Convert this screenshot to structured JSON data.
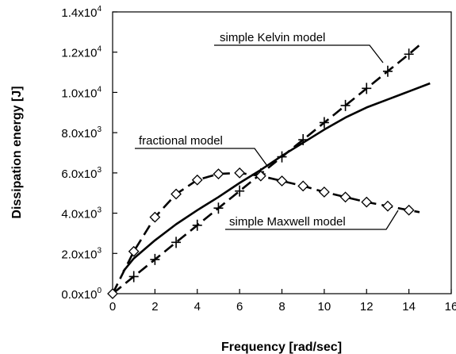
{
  "chart_data": {
    "type": "line",
    "title": "",
    "xlabel": "Frequency [rad/sec]",
    "ylabel": "Dissipation energy [J]",
    "xlim": [
      0,
      16
    ],
    "ylim": [
      0,
      14000
    ],
    "grid": false,
    "x_ticks": [
      "0",
      "2",
      "4",
      "6",
      "8",
      "10",
      "12",
      "14",
      "16"
    ],
    "y_ticks": [
      {
        "mant": "0.0x10",
        "exp": "0"
      },
      {
        "mant": "2.0x10",
        "exp": "3"
      },
      {
        "mant": "4.0x10",
        "exp": "3"
      },
      {
        "mant": "6.0x10",
        "exp": "3"
      },
      {
        "mant": "8.0x10",
        "exp": "3"
      },
      {
        "mant": "1.0x10",
        "exp": "4"
      },
      {
        "mant": "1.2x10",
        "exp": "4"
      },
      {
        "mant": "1.4x10",
        "exp": "4"
      }
    ],
    "series": [
      {
        "name": "simple Kelvin model",
        "line": "dashed",
        "marker": "plus",
        "x": [
          0,
          1,
          2,
          3,
          4,
          5,
          6,
          7,
          8,
          9,
          10,
          11,
          12,
          13,
          14,
          14.5
        ],
        "y": [
          0,
          850,
          1700,
          2550,
          3400,
          4250,
          5100,
          5950,
          6800,
          7650,
          8500,
          9350,
          10200,
          11050,
          11900,
          12350
        ],
        "marker_x": [
          1,
          2,
          3,
          4,
          5,
          6,
          7,
          8,
          9,
          10,
          11,
          12,
          13,
          14
        ]
      },
      {
        "name": "fractional model",
        "line": "solid",
        "marker": "none",
        "x": [
          0.5,
          1,
          2,
          3,
          4,
          5,
          6,
          7,
          8,
          9,
          10,
          11,
          12,
          13,
          14,
          15
        ],
        "y": [
          1100,
          1750,
          2650,
          3450,
          4150,
          4800,
          5500,
          6150,
          6850,
          7500,
          8150,
          8750,
          9250,
          9650,
          10050,
          10450
        ]
      },
      {
        "name": "simple Maxwell model",
        "line": "dashed",
        "marker": "diamond",
        "x": [
          0,
          1,
          2,
          3,
          4,
          5,
          6,
          7,
          8,
          9,
          10,
          11,
          12,
          13,
          14,
          14.5
        ],
        "y": [
          0,
          2100,
          3800,
          4950,
          5650,
          5950,
          6000,
          5850,
          5600,
          5350,
          5050,
          4800,
          4550,
          4350,
          4150,
          4050
        ],
        "marker_x": [
          0,
          1,
          2,
          3,
          4,
          5,
          6,
          7,
          8,
          9,
          10,
          11,
          12,
          13,
          14
        ]
      }
    ],
    "annotations": [
      {
        "text": "simple Kelvin model",
        "series": 0
      },
      {
        "text": "fractional model",
        "series": 1
      },
      {
        "text": "simple Maxwell model",
        "series": 2
      }
    ]
  }
}
